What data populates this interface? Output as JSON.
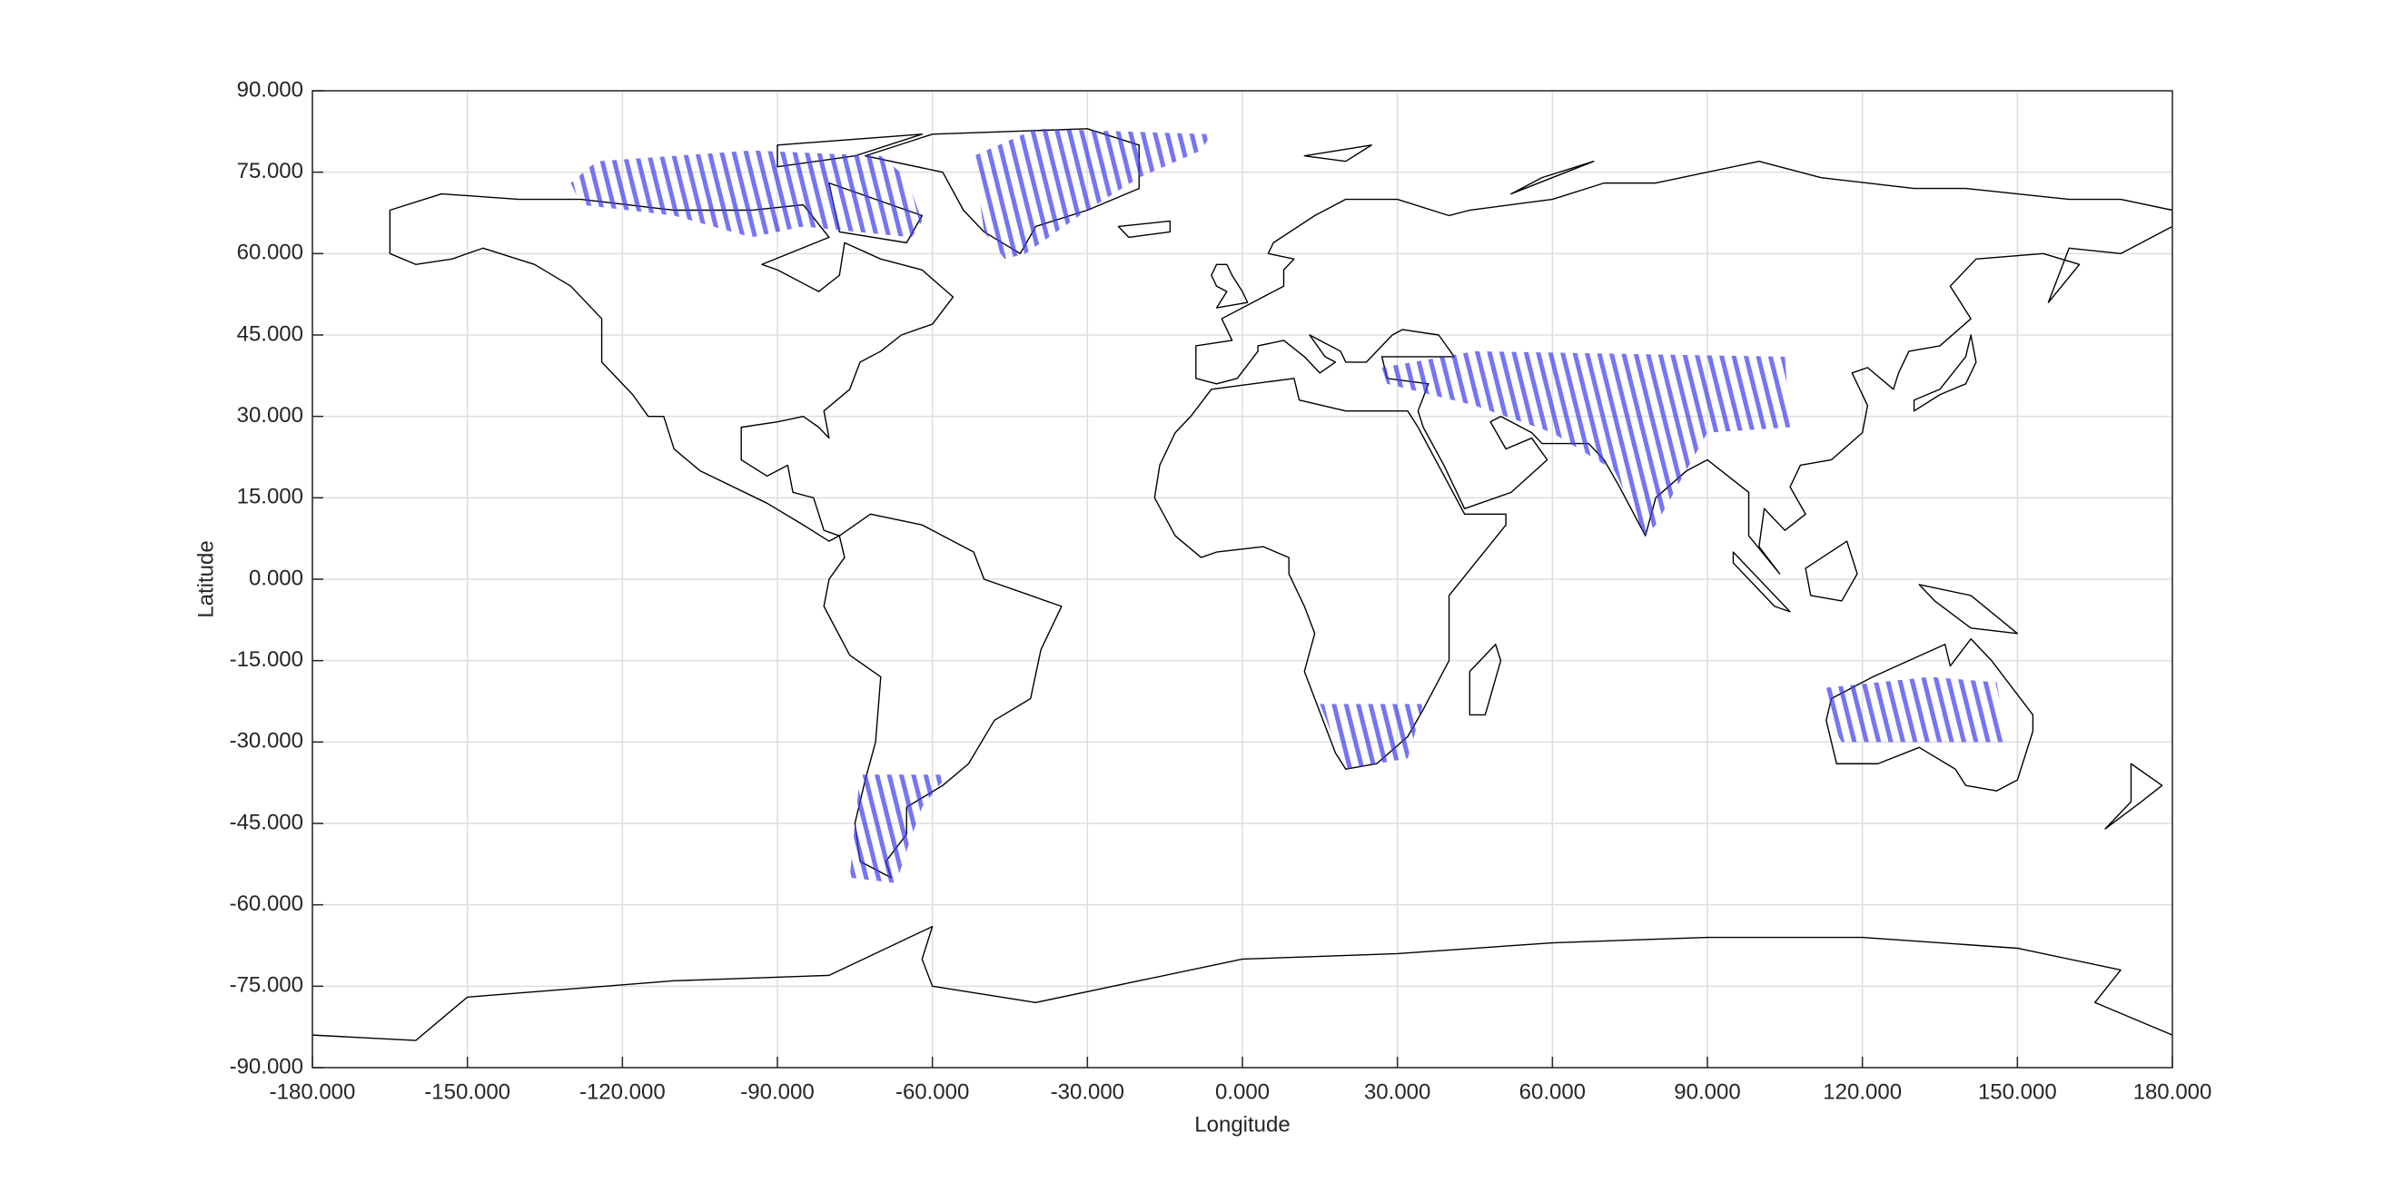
{
  "chart_data": {
    "type": "map",
    "x_label": "Longitude",
    "y_label": "Latitude",
    "xlim": [
      -180,
      180
    ],
    "ylim": [
      -90,
      90
    ],
    "grid": true,
    "xticks": [
      {
        "value": -180,
        "label": "-180.000"
      },
      {
        "value": -150,
        "label": "-150.000"
      },
      {
        "value": -120,
        "label": "-120.000"
      },
      {
        "value": -90,
        "label": "-90.000"
      },
      {
        "value": -60,
        "label": "-60.000"
      },
      {
        "value": -30,
        "label": "-30.000"
      },
      {
        "value": 0,
        "label": "0.000"
      },
      {
        "value": 30,
        "label": "30.000"
      },
      {
        "value": 60,
        "label": "60.000"
      },
      {
        "value": 90,
        "label": "90.000"
      },
      {
        "value": 120,
        "label": "120.000"
      },
      {
        "value": 150,
        "label": "150.000"
      },
      {
        "value": 180,
        "label": "180.000"
      }
    ],
    "yticks": [
      {
        "value": -90,
        "label": "-90.000"
      },
      {
        "value": -75,
        "label": "-75.000"
      },
      {
        "value": -60,
        "label": "-60.000"
      },
      {
        "value": -45,
        "label": "-45.000"
      },
      {
        "value": -30,
        "label": "-30.000"
      },
      {
        "value": -15,
        "label": "-15.000"
      },
      {
        "value": 0,
        "label": "0.000"
      },
      {
        "value": 15,
        "label": "15.000"
      },
      {
        "value": 30,
        "label": "30.000"
      },
      {
        "value": 45,
        "label": "45.000"
      },
      {
        "value": 60,
        "label": "60.000"
      },
      {
        "value": 75,
        "label": "75.000"
      },
      {
        "value": 90,
        "label": "90.000"
      }
    ],
    "series": [
      {
        "color": "#3b3bf0",
        "x": [
          -130,
          -125,
          -95,
          -70,
          -65,
          -62,
          -64,
          -85,
          -95,
          -110,
          -128
        ],
        "y": [
          73,
          77,
          79,
          78,
          74,
          66,
          63,
          65,
          63,
          67,
          69
        ]
      },
      {
        "color": "#3b3bf0",
        "x": [
          -52,
          -40,
          -6,
          -8,
          -20,
          -30,
          -42,
          -46,
          -50
        ],
        "y": [
          78,
          83,
          82,
          79,
          74,
          68,
          60,
          59,
          64
        ]
      },
      {
        "color": "#3b3bf0",
        "x": [
          27,
          45,
          105,
          106,
          90,
          80,
          78,
          72,
          60,
          45,
          28
        ],
        "y": [
          39,
          42,
          41,
          28,
          27,
          10,
          8,
          20,
          27,
          32,
          36
        ]
      },
      {
        "color": "#3b3bf0",
        "x": [
          15,
          35,
          32,
          20
        ],
        "y": [
          -23,
          -23,
          -33,
          -35
        ]
      },
      {
        "color": "#3b3bf0",
        "x": [
          -74,
          -57,
          -62,
          -65,
          -67,
          -76,
          -75
        ],
        "y": [
          -36,
          -36,
          -42,
          -50,
          -56,
          -55,
          -45
        ]
      },
      {
        "color": "#3b3bf0",
        "x": [
          113,
          133,
          146,
          148,
          116,
          113
        ],
        "y": [
          -20,
          -18,
          -19,
          -30,
          -30,
          -25
        ]
      }
    ]
  }
}
